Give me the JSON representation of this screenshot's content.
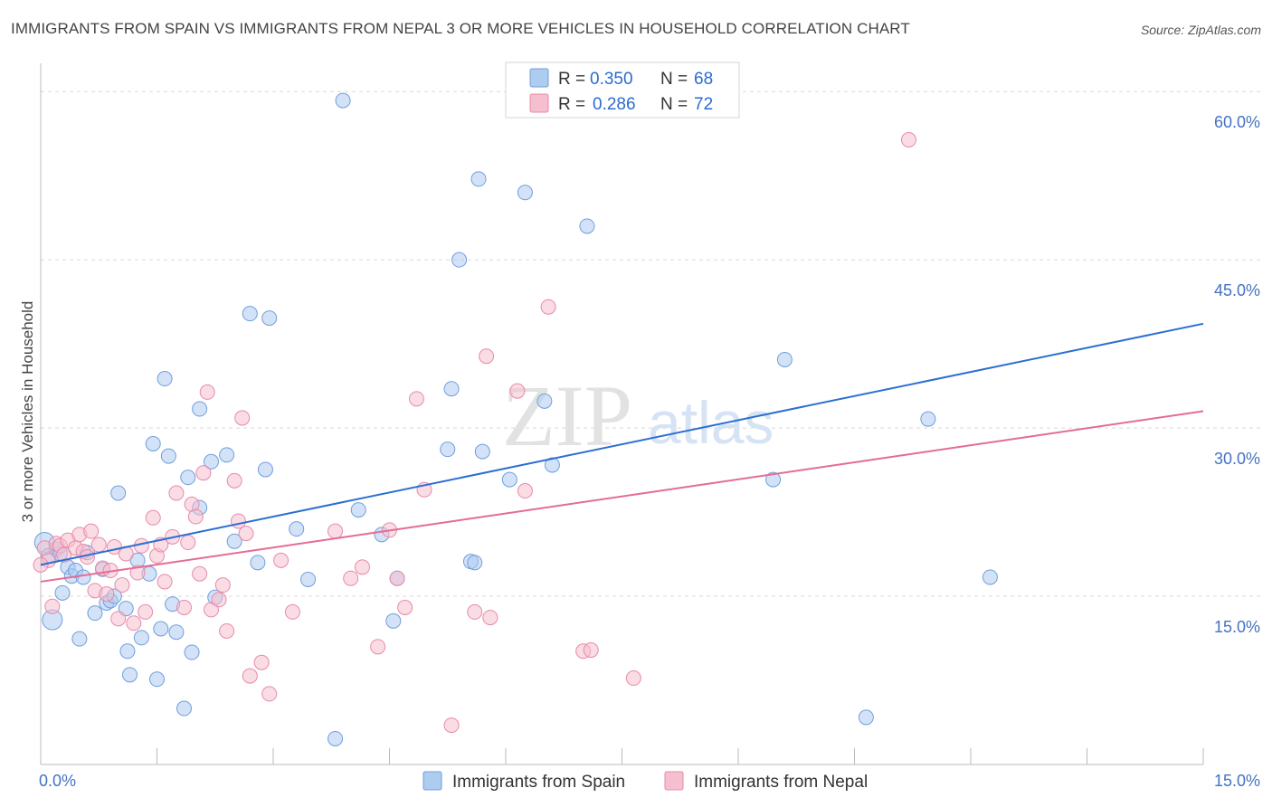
{
  "header": {
    "title": "IMMIGRANTS FROM SPAIN VS IMMIGRANTS FROM NEPAL 3 OR MORE VEHICLES IN HOUSEHOLD CORRELATION CHART",
    "source": "Source: ZipAtlas.com"
  },
  "watermark": {
    "zip": "ZIP",
    "atlas": "atlas"
  },
  "colors": {
    "spain_fill": "#aecbf0",
    "spain_stroke": "#6f9fdc",
    "spain_line": "#2b6fd1",
    "nepal_fill": "#f6bfd0",
    "nepal_stroke": "#e88aa8",
    "nepal_line": "#e46c95",
    "grid": "#d8d8d8",
    "tick_label": "#4472C4"
  },
  "legend": {
    "rows": [
      {
        "r_label": "R =",
        "r_value": "0.350",
        "n_label": "N =",
        "n_value": "68"
      },
      {
        "r_label": "R =",
        "r_value": "0.286",
        "n_label": "N =",
        "n_value": "72"
      }
    ]
  },
  "bottom_legend": [
    "Immigrants from Spain",
    "Immigrants from Nepal"
  ],
  "chart_data": {
    "type": "scatter",
    "title": "IMMIGRANTS FROM SPAIN VS IMMIGRANTS FROM NEPAL 3 OR MORE VEHICLES IN HOUSEHOLD CORRELATION CHART",
    "xlabel": "",
    "ylabel": "3 or more Vehicles in Household",
    "xlim": [
      0,
      15
    ],
    "ylim": [
      0,
      63
    ],
    "x_tick_labels": [
      "0.0%",
      "15.0%"
    ],
    "y_ticks": [
      15,
      30,
      45,
      60
    ],
    "y_tick_labels": [
      "15.0%",
      "30.0%",
      "45.0%",
      "60.0%"
    ],
    "grid": true,
    "legend_position": "top-center",
    "series": [
      {
        "name": "Immigrants from Spain",
        "R": 0.35,
        "N": 68,
        "trend": {
          "x": [
            0,
            15
          ],
          "y": [
            17.8,
            39.3
          ]
        },
        "points": [
          [
            0.05,
            19.8
          ],
          [
            0.1,
            18.6
          ],
          [
            0.15,
            12.9
          ],
          [
            0.2,
            19.2
          ],
          [
            0.25,
            18.8
          ],
          [
            0.28,
            15.3
          ],
          [
            0.35,
            17.6
          ],
          [
            0.4,
            16.8
          ],
          [
            0.45,
            17.3
          ],
          [
            0.5,
            11.2
          ],
          [
            0.55,
            16.7
          ],
          [
            0.6,
            18.9
          ],
          [
            0.7,
            13.5
          ],
          [
            0.8,
            17.4
          ],
          [
            0.85,
            14.4
          ],
          [
            0.9,
            14.6
          ],
          [
            0.95,
            15.0
          ],
          [
            1.0,
            24.2
          ],
          [
            1.1,
            13.9
          ],
          [
            1.12,
            10.1
          ],
          [
            1.15,
            8.0
          ],
          [
            1.25,
            18.2
          ],
          [
            1.3,
            11.3
          ],
          [
            1.4,
            17.0
          ],
          [
            1.45,
            28.6
          ],
          [
            1.5,
            7.6
          ],
          [
            1.55,
            12.1
          ],
          [
            1.6,
            34.4
          ],
          [
            1.65,
            27.5
          ],
          [
            1.7,
            14.3
          ],
          [
            1.75,
            11.8
          ],
          [
            1.85,
            5.0
          ],
          [
            1.9,
            25.6
          ],
          [
            1.95,
            10.0
          ],
          [
            2.05,
            31.7
          ],
          [
            2.05,
            22.9
          ],
          [
            2.2,
            27.0
          ],
          [
            2.25,
            14.9
          ],
          [
            2.4,
            27.6
          ],
          [
            2.5,
            19.9
          ],
          [
            2.7,
            40.2
          ],
          [
            2.8,
            18.0
          ],
          [
            2.9,
            26.3
          ],
          [
            2.95,
            39.8
          ],
          [
            3.3,
            21.0
          ],
          [
            3.45,
            16.5
          ],
          [
            3.8,
            2.3
          ],
          [
            3.9,
            59.2
          ],
          [
            4.1,
            22.7
          ],
          [
            4.4,
            20.5
          ],
          [
            4.55,
            12.8
          ],
          [
            4.6,
            16.6
          ],
          [
            5.25,
            28.1
          ],
          [
            5.3,
            33.5
          ],
          [
            5.4,
            45.0
          ],
          [
            5.55,
            18.1
          ],
          [
            5.6,
            18.0
          ],
          [
            5.65,
            52.2
          ],
          [
            5.7,
            27.9
          ],
          [
            6.05,
            25.4
          ],
          [
            6.25,
            51.0
          ],
          [
            6.5,
            32.4
          ],
          [
            6.6,
            26.7
          ],
          [
            7.05,
            48.0
          ],
          [
            9.45,
            25.4
          ],
          [
            9.6,
            36.1
          ],
          [
            10.65,
            4.2
          ],
          [
            11.45,
            30.8
          ],
          [
            12.25,
            16.7
          ]
        ]
      },
      {
        "name": "Immigrants from Nepal",
        "R": 0.286,
        "N": 72,
        "trend": {
          "x": [
            0,
            15
          ],
          "y": [
            16.3,
            31.5
          ]
        },
        "points": [
          [
            0.05,
            19.3
          ],
          [
            0.1,
            18.2
          ],
          [
            0.15,
            14.1
          ],
          [
            0.2,
            19.7
          ],
          [
            0.25,
            19.5
          ],
          [
            0.3,
            18.7
          ],
          [
            0.35,
            20.0
          ],
          [
            0.45,
            19.3
          ],
          [
            0.5,
            20.5
          ],
          [
            0.55,
            19.0
          ],
          [
            0.6,
            18.5
          ],
          [
            0.65,
            20.8
          ],
          [
            0.7,
            15.5
          ],
          [
            0.75,
            19.6
          ],
          [
            0.8,
            17.5
          ],
          [
            0.85,
            15.2
          ],
          [
            0.9,
            17.3
          ],
          [
            0.95,
            19.4
          ],
          [
            1.0,
            13.0
          ],
          [
            1.05,
            16.0
          ],
          [
            1.1,
            18.8
          ],
          [
            1.2,
            12.6
          ],
          [
            1.25,
            17.1
          ],
          [
            1.3,
            19.5
          ],
          [
            1.35,
            13.6
          ],
          [
            1.45,
            22.0
          ],
          [
            1.5,
            18.6
          ],
          [
            1.55,
            19.6
          ],
          [
            1.6,
            16.3
          ],
          [
            1.7,
            20.3
          ],
          [
            1.75,
            24.2
          ],
          [
            1.85,
            14.0
          ],
          [
            1.9,
            19.8
          ],
          [
            1.95,
            23.2
          ],
          [
            2.0,
            22.1
          ],
          [
            2.05,
            17.0
          ],
          [
            2.1,
            26.0
          ],
          [
            2.15,
            33.2
          ],
          [
            2.2,
            13.8
          ],
          [
            2.3,
            14.7
          ],
          [
            2.35,
            16.0
          ],
          [
            2.4,
            11.9
          ],
          [
            2.5,
            25.3
          ],
          [
            2.55,
            21.7
          ],
          [
            2.6,
            30.9
          ],
          [
            2.65,
            20.6
          ],
          [
            2.7,
            7.9
          ],
          [
            2.85,
            9.1
          ],
          [
            2.95,
            6.3
          ],
          [
            3.1,
            18.2
          ],
          [
            3.25,
            13.6
          ],
          [
            3.8,
            20.8
          ],
          [
            4.0,
            16.6
          ],
          [
            4.15,
            17.6
          ],
          [
            4.35,
            10.5
          ],
          [
            4.5,
            20.9
          ],
          [
            4.6,
            16.6
          ],
          [
            4.7,
            14.0
          ],
          [
            4.85,
            32.6
          ],
          [
            4.95,
            24.5
          ],
          [
            5.3,
            3.5
          ],
          [
            5.6,
            13.6
          ],
          [
            5.75,
            36.4
          ],
          [
            5.8,
            13.1
          ],
          [
            6.15,
            33.3
          ],
          [
            6.25,
            24.4
          ],
          [
            6.55,
            40.8
          ],
          [
            7.0,
            10.1
          ],
          [
            7.1,
            10.2
          ],
          [
            7.65,
            7.7
          ],
          [
            11.2,
            55.7
          ],
          [
            0.0,
            17.8
          ]
        ]
      }
    ]
  }
}
